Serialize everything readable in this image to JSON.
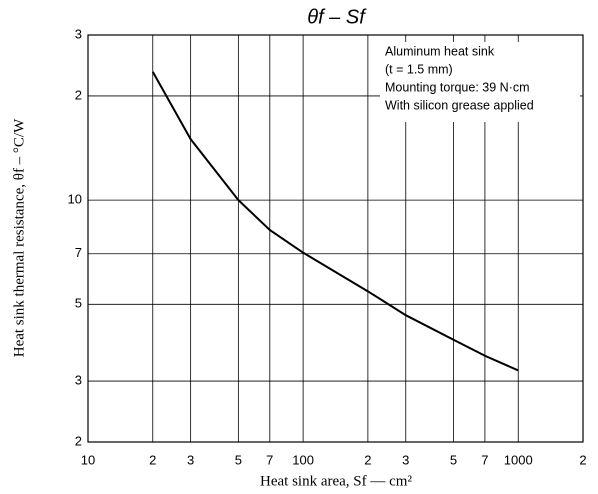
{
  "chart_data": {
    "type": "line",
    "title": "θf – Sf",
    "x_label": "Heat sink area, Sf — cm²",
    "y_label": "Heat sink thermal resistance, θf – °C/W",
    "annotation": [
      "Aluminum heat sink",
      "(t = 1.5 mm)",
      "Mounting torque: 39 N·cm",
      "With silicon grease applied"
    ],
    "x": [
      20,
      30,
      50,
      70,
      100,
      200,
      300,
      500,
      700,
      1000
    ],
    "values": [
      23.5,
      15,
      10,
      8.2,
      7.05,
      5.45,
      4.65,
      3.95,
      3.55,
      3.22
    ],
    "color": "#000000",
    "xlog": true,
    "ylog": true,
    "grid": true,
    "xlim": [
      10,
      2000
    ],
    "ylim": [
      2,
      30
    ],
    "xticks": [
      10,
      {
        "value": 20,
        "label": "2"
      },
      {
        "value": 30,
        "label": "3"
      },
      {
        "value": 50,
        "label": "5"
      },
      {
        "value": 70,
        "label": "7"
      },
      100,
      {
        "value": 200,
        "label": "2"
      },
      {
        "value": 300,
        "label": "3"
      },
      {
        "value": 500,
        "label": "5"
      },
      {
        "value": 700,
        "label": "7"
      },
      1000,
      {
        "value": 2000,
        "label": "2"
      }
    ],
    "yticks": [
      {
        "value": 2,
        "label": "2"
      },
      {
        "value": 3,
        "label": "3"
      },
      {
        "value": 5,
        "label": "5"
      },
      {
        "value": 7,
        "label": "7"
      },
      10,
      {
        "value": 20,
        "label": "2"
      },
      {
        "value": 30,
        "label": "3"
      }
    ]
  }
}
